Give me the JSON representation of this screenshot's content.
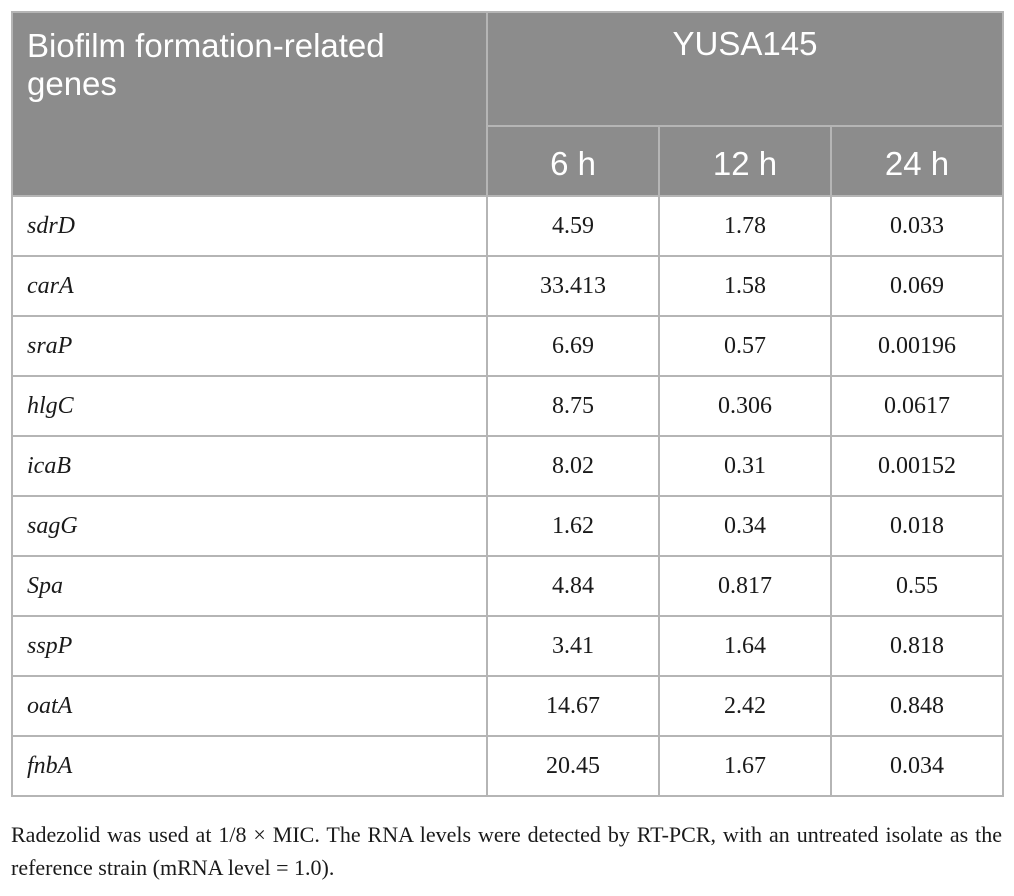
{
  "table": {
    "header": {
      "gene_col_label": "Biofilm formation-related genes",
      "strain_label": "YUSA145",
      "time_points": [
        "6 h",
        "12 h",
        "24 h"
      ]
    },
    "rows": [
      {
        "gene": "sdrD",
        "values": [
          "4.59",
          "1.78",
          "0.033"
        ]
      },
      {
        "gene": "carA",
        "values": [
          "33.413",
          "1.58",
          "0.069"
        ]
      },
      {
        "gene": "sraP",
        "values": [
          "6.69",
          "0.57",
          "0.00196"
        ]
      },
      {
        "gene": "hlgC",
        "values": [
          "8.75",
          "0.306",
          "0.0617"
        ]
      },
      {
        "gene": "icaB",
        "values": [
          "8.02",
          "0.31",
          "0.00152"
        ]
      },
      {
        "gene": "sagG",
        "values": [
          "1.62",
          "0.34",
          "0.018"
        ]
      },
      {
        "gene": "Spa",
        "values": [
          "4.84",
          "0.817",
          "0.55"
        ]
      },
      {
        "gene": "sspP",
        "values": [
          "3.41",
          "1.64",
          "0.818"
        ]
      },
      {
        "gene": "oatA",
        "values": [
          "14.67",
          "2.42",
          "0.848"
        ]
      },
      {
        "gene": "fnbA",
        "values": [
          "20.45",
          "1.67",
          "0.034"
        ]
      }
    ],
    "colors": {
      "header_bg": "#8c8c8c",
      "header_text": "#ffffff",
      "border": "#b5b5b5"
    }
  },
  "footnote": "Radezolid was used at 1/8 × MIC. The RNA levels were detected by RT-PCR, with an untreated isolate as the reference strain (mRNA level = 1.0)."
}
